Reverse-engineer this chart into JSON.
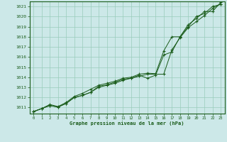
{
  "xlabel": "Graphe pression niveau de la mer (hPa)",
  "ylim": [
    1010.4,
    1021.5
  ],
  "xlim": [
    -0.5,
    23.5
  ],
  "yticks": [
    1011,
    1012,
    1013,
    1014,
    1015,
    1016,
    1017,
    1018,
    1019,
    1020,
    1021
  ],
  "xticks": [
    0,
    1,
    2,
    3,
    4,
    5,
    6,
    7,
    8,
    9,
    10,
    11,
    12,
    13,
    14,
    15,
    16,
    17,
    18,
    19,
    20,
    21,
    22,
    23
  ],
  "bg_color": "#cce8e8",
  "grid_color": "#99ccbb",
  "line_color": "#1a5c1a",
  "line1_x": [
    0,
    1,
    2,
    3,
    4,
    5,
    6,
    7,
    8,
    9,
    10,
    11,
    12,
    13,
    14,
    15,
    16,
    17,
    18,
    19,
    20,
    21,
    22,
    23
  ],
  "line1_y": [
    1010.6,
    1010.9,
    1011.2,
    1011.05,
    1011.4,
    1012.0,
    1012.2,
    1012.5,
    1013.1,
    1013.25,
    1013.5,
    1013.8,
    1013.9,
    1014.2,
    1013.9,
    1014.2,
    1016.2,
    1016.5,
    1018.0,
    1019.0,
    1020.0,
    1020.3,
    1021.0,
    1021.2
  ],
  "line2_x": [
    0,
    1,
    2,
    3,
    4,
    5,
    6,
    7,
    8,
    9,
    10,
    11,
    12,
    13,
    14,
    15,
    16,
    17,
    18,
    19,
    20,
    21,
    22,
    23
  ],
  "line2_y": [
    1010.6,
    1010.9,
    1011.3,
    1011.1,
    1011.5,
    1012.1,
    1012.4,
    1012.8,
    1013.2,
    1013.4,
    1013.6,
    1013.9,
    1014.0,
    1014.3,
    1014.4,
    1014.35,
    1016.6,
    1018.0,
    1018.0,
    1019.2,
    1019.8,
    1020.5,
    1020.5,
    1021.4
  ],
  "line3_x": [
    0,
    1,
    2,
    3,
    4,
    5,
    6,
    7,
    8,
    9,
    10,
    11,
    12,
    13,
    14,
    15,
    16,
    17,
    18,
    19,
    20,
    21,
    22,
    23
  ],
  "line3_y": [
    1010.6,
    1010.9,
    1011.2,
    1011.05,
    1011.4,
    1012.0,
    1012.2,
    1012.5,
    1013.0,
    1013.2,
    1013.4,
    1013.7,
    1013.9,
    1014.1,
    1014.3,
    1014.3,
    1014.3,
    1016.7,
    1017.9,
    1018.9,
    1019.5,
    1020.1,
    1020.8,
    1021.25
  ]
}
